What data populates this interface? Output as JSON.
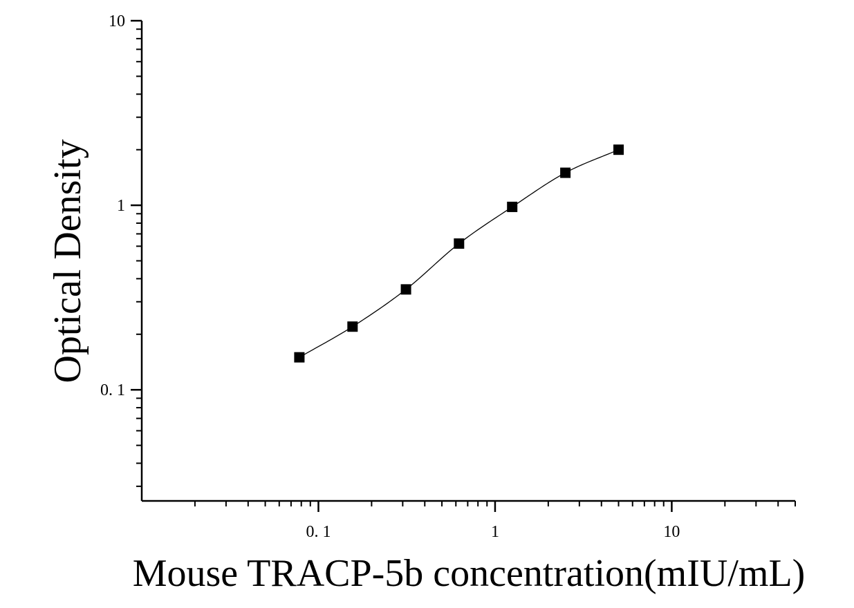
{
  "chart_data": {
    "type": "scatter",
    "xlabel": "Mouse TRACP-5b concentration(mIU/mL)",
    "ylabel": "Optical Density",
    "x_scale": "log",
    "y_scale": "log",
    "xlim": [
      0.01,
      50
    ],
    "ylim": [
      0.025,
      10
    ],
    "x_ticks": [
      {
        "value": 0.1,
        "label": "0. 1"
      },
      {
        "value": 1,
        "label": "1"
      },
      {
        "value": 10,
        "label": "10"
      }
    ],
    "y_ticks": [
      {
        "value": 0.1,
        "label": "0. 1"
      },
      {
        "value": 1,
        "label": "1"
      },
      {
        "value": 10,
        "label": "10"
      }
    ],
    "grid": false,
    "fit_curve": true,
    "marker": "square",
    "series": [
      {
        "x": [
          0.078,
          0.156,
          0.313,
          0.625,
          1.25,
          2.5,
          5
        ],
        "y": [
          0.15,
          0.22,
          0.35,
          0.62,
          0.98,
          1.5,
          2.0
        ]
      }
    ],
    "colors": {
      "marker": "#000000",
      "curve": "#000000",
      "axis": "#000000"
    }
  }
}
